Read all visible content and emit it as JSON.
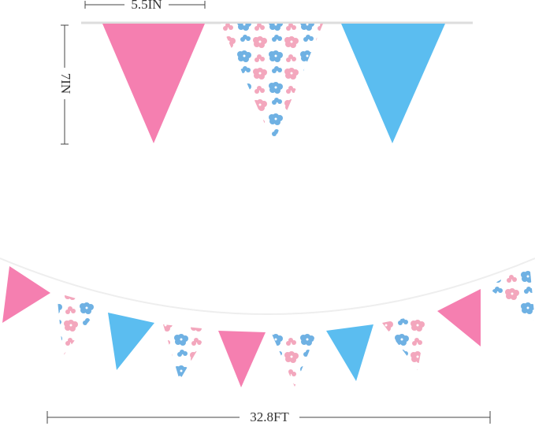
{
  "dimensions": {
    "flag_width": "5.5IN",
    "flag_height": "7IN",
    "total_length": "32.8FT"
  }
}
